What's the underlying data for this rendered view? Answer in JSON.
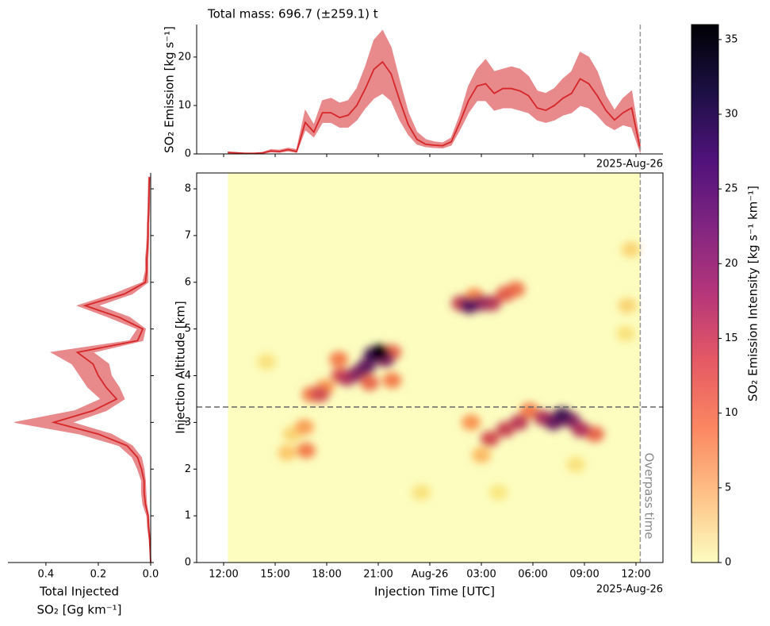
{
  "chart_data": [
    {
      "type": "line",
      "title": "Total mass: 696.7 (±259.1) t",
      "ylabel": "SO₂ Emission [kg s⁻¹]",
      "color": "#d62728",
      "band_color": "#e8898c",
      "x": [
        12.25,
        12.75,
        13.25,
        13.75,
        14.25,
        14.75,
        15.25,
        15.75,
        16.25,
        16.75,
        17.25,
        17.75,
        18.25,
        18.75,
        19.25,
        19.75,
        20.25,
        20.75,
        21.25,
        21.75,
        22.25,
        22.75,
        23.25,
        23.75,
        24.25,
        24.75,
        25.25,
        25.75,
        26.25,
        26.75,
        27.25,
        27.75,
        28.25,
        28.75,
        29.25,
        29.75,
        30.25,
        30.75,
        31.25,
        31.75,
        32.25,
        32.75,
        33.25,
        33.75,
        34.25,
        34.75,
        35.25,
        35.75,
        36.25
      ],
      "values": [
        0.3,
        0.2,
        0.1,
        0.1,
        0.2,
        0.6,
        0.5,
        0.9,
        0.5,
        6.5,
        4.5,
        8.5,
        8.5,
        7.5,
        8,
        10,
        13.5,
        17.5,
        19,
        16.5,
        11,
        6,
        3,
        2,
        1.8,
        1.7,
        2.5,
        6.5,
        11,
        14,
        14.5,
        12.5,
        13.5,
        13.5,
        13,
        12,
        9.5,
        9,
        10,
        11.5,
        12.5,
        15.5,
        14.5,
        12,
        9,
        7,
        8.5,
        9.5,
        1
      ],
      "lower": [
        0.2,
        0.1,
        0,
        0,
        0.1,
        0.4,
        0.3,
        0.6,
        0.3,
        5,
        3.5,
        6.5,
        6.5,
        5.5,
        5.5,
        7,
        9.5,
        11.5,
        12.5,
        11,
        7,
        4,
        2,
        1.5,
        1.3,
        1.2,
        1.8,
        5,
        8.5,
        11,
        11,
        9,
        9.5,
        9.5,
        9,
        8.5,
        7,
        6.5,
        7,
        8,
        8.5,
        10,
        9.5,
        8,
        6,
        5,
        6,
        5.5,
        0.3
      ],
      "upper": [
        0.4,
        0.3,
        0.2,
        0.2,
        0.3,
        0.9,
        0.8,
        1.2,
        0.9,
        9,
        6,
        11,
        11.5,
        10.5,
        11,
        13.5,
        18,
        23.5,
        25.5,
        22,
        15,
        8.5,
        4.5,
        3,
        2.5,
        2.3,
        3.3,
        8,
        14,
        17.5,
        19.5,
        17,
        17.5,
        18,
        17.5,
        16,
        13,
        12.5,
        13.5,
        15.5,
        17,
        21,
        20,
        17,
        12,
        9,
        11.5,
        13,
        2
      ],
      "xlim": [
        10.43,
        37.57
      ],
      "xticks": [
        12,
        15,
        18,
        21,
        24,
        27,
        30,
        33,
        36
      ],
      "ylim": [
        0,
        26.7
      ],
      "yticks": [
        0,
        10,
        20
      ]
    },
    {
      "type": "heatmap",
      "xlabel": "Injection Time [UTC]",
      "ylabel": "Injection Altitude [km]",
      "date_label": "2025-Aug-26",
      "colormap": "magma_r",
      "x": [
        14.5,
        15.7,
        16.0,
        16.7,
        16.8,
        17.1,
        17.9,
        17.6,
        18.7,
        18.8,
        19.2,
        19.8,
        20.5,
        21.8,
        21.8,
        20.3,
        21.4,
        20.7,
        21.1,
        23.5,
        28,
        32.5,
        35.4,
        35.5,
        35.7,
        26.6,
        29.0,
        28.4,
        25.8,
        27.6,
        27.0,
        26.3,
        27.0,
        26.4,
        29.8,
        33.6,
        27.5,
        28.4,
        29.2,
        30.6,
        32.8,
        32.2,
        31.2,
        31.7
      ],
      "y": [
        4.3,
        2.35,
        2.75,
        2.9,
        2.4,
        3.6,
        3.75,
        3.6,
        4.35,
        4.0,
        3.95,
        4.05,
        3.85,
        3.9,
        4.5,
        4.2,
        4.35,
        4.45,
        4.5,
        1.5,
        1.5,
        2.1,
        4.9,
        5.5,
        6.7,
        5.7,
        5.85,
        5.75,
        5.55,
        5.55,
        5.55,
        5.5,
        2.3,
        3.0,
        3.25,
        2.75,
        2.65,
        2.85,
        3.0,
        3.1,
        2.85,
        3.05,
        3.0,
        3.15
      ],
      "values": [
        2,
        4,
        3,
        7,
        10,
        10,
        8,
        15,
        10,
        14,
        18,
        22,
        12,
        10,
        12,
        25,
        22,
        28,
        36,
        2,
        1.5,
        2,
        2,
        3,
        3,
        9,
        11,
        13,
        16,
        17,
        20,
        26,
        5,
        8,
        10,
        12,
        15,
        16,
        17,
        18,
        18,
        22,
        24,
        28
      ],
      "xlim": [
        10.43,
        37.57
      ],
      "xticks": [
        {
          "value": 12,
          "label": "12:00"
        },
        {
          "value": 15,
          "label": "15:00"
        },
        {
          "value": 18,
          "label": "18:00"
        },
        {
          "value": 21,
          "label": "21:00"
        },
        {
          "value": 24,
          "label": "Aug-26"
        },
        {
          "value": 27,
          "label": "03:00"
        },
        {
          "value": 30,
          "label": "06:00"
        },
        {
          "value": 33,
          "label": "09:00"
        },
        {
          "value": 36,
          "label": "12:00"
        }
      ],
      "ylim": [
        0,
        8.34
      ],
      "yticks": [
        0,
        1,
        2,
        3,
        4,
        5,
        6,
        7,
        8
      ],
      "hline": 3.33,
      "vline": 36.25,
      "vline_label": "Overpass time"
    },
    {
      "type": "profile",
      "xlabel": [
        "Total Injected",
        "SO₂ [Gg km⁻¹]"
      ],
      "color": "#d62728",
      "band_color": "#e8898c",
      "y": [
        0,
        0.25,
        0.5,
        0.75,
        1,
        1.25,
        1.5,
        1.75,
        2,
        2.25,
        2.5,
        2.75,
        3,
        3.25,
        3.5,
        3.75,
        4,
        4.25,
        4.5,
        4.75,
        5,
        5.25,
        5.5,
        5.75,
        6,
        6.25,
        6.5,
        6.75,
        7,
        7.25,
        7.5,
        7.75,
        8,
        8.25
      ],
      "values": [
        0,
        0.002,
        0.004,
        0.008,
        0.01,
        0.02,
        0.025,
        0.025,
        0.035,
        0.05,
        0.09,
        0.2,
        0.37,
        0.22,
        0.13,
        0.17,
        0.2,
        0.22,
        0.28,
        0.05,
        0.03,
        0.12,
        0.25,
        0.1,
        0.02,
        0.015,
        0.015,
        0.012,
        0.01,
        0.01,
        0.008,
        0.007,
        0.006,
        0.005
      ],
      "lower": [
        0,
        0.001,
        0.002,
        0.005,
        0.007,
        0.015,
        0.018,
        0.02,
        0.025,
        0.035,
        0.07,
        0.15,
        0.3,
        0.17,
        0.1,
        0.12,
        0.15,
        0.16,
        0.22,
        0.03,
        0.02,
        0.08,
        0.2,
        0.07,
        0.01,
        0.01,
        0.01,
        0.008,
        0.007,
        0.007,
        0.005,
        0.004,
        0.004,
        0.003
      ],
      "upper": [
        0.001,
        0.003,
        0.006,
        0.012,
        0.015,
        0.03,
        0.035,
        0.035,
        0.05,
        0.07,
        0.12,
        0.27,
        0.52,
        0.29,
        0.19,
        0.24,
        0.27,
        0.3,
        0.38,
        0.08,
        0.05,
        0.16,
        0.28,
        0.14,
        0.03,
        0.02,
        0.02,
        0.016,
        0.014,
        0.013,
        0.011,
        0.01,
        0.009,
        0.008
      ],
      "xlim": [
        0.545,
        0
      ],
      "xticks": [
        0.4,
        0.2,
        {
          "value": 0,
          "label": "0.0"
        }
      ]
    },
    {
      "type": "colorbar",
      "label": "SO₂ Emission Intensity [kg s⁻¹ km⁻¹]",
      "colormap": "magma_r",
      "ylim": [
        0,
        36
      ],
      "yticks": [
        0,
        5,
        10,
        15,
        20,
        25,
        30,
        35
      ]
    }
  ]
}
